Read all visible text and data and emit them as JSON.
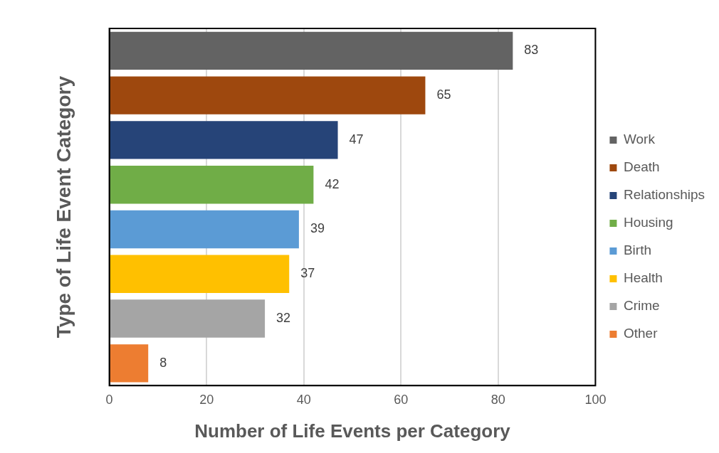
{
  "chart_data": {
    "type": "bar",
    "orientation": "horizontal",
    "xlabel": "Number of Life Events per Category",
    "ylabel": "Type of Life Event Category",
    "categories": [
      null,
      null,
      null,
      null,
      null,
      null,
      null,
      null
    ],
    "series": [
      {
        "name": "Work",
        "color": "#636363",
        "values": [
          83,
          null,
          null,
          null,
          null,
          null,
          null,
          null
        ]
      },
      {
        "name": "Death",
        "color": "#9e480e",
        "values": [
          null,
          65,
          null,
          null,
          null,
          null,
          null,
          null
        ]
      },
      {
        "name": "Relationships",
        "color": "#264478",
        "values": [
          null,
          null,
          47,
          null,
          null,
          null,
          null,
          null
        ]
      },
      {
        "name": "Housing",
        "color": "#70ad47",
        "values": [
          null,
          null,
          null,
          42,
          null,
          null,
          null,
          null
        ]
      },
      {
        "name": "Birth",
        "color": "#5b9bd5",
        "values": [
          null,
          null,
          null,
          null,
          39,
          null,
          null,
          null
        ]
      },
      {
        "name": "Health",
        "color": "#ffc000",
        "values": [
          null,
          null,
          null,
          null,
          null,
          37,
          null,
          null
        ]
      },
      {
        "name": "Crime",
        "color": "#a5a5a5",
        "values": [
          null,
          null,
          null,
          null,
          null,
          null,
          32,
          null
        ]
      },
      {
        "name": "Other",
        "color": "#ed7d31",
        "values": [
          null,
          null,
          null,
          null,
          null,
          null,
          null,
          8
        ]
      }
    ],
    "xlim": [
      0,
      100
    ],
    "xticks": [
      0,
      20,
      40,
      60,
      80,
      100
    ],
    "grid": "x",
    "legend": "right",
    "data_labels": true
  }
}
